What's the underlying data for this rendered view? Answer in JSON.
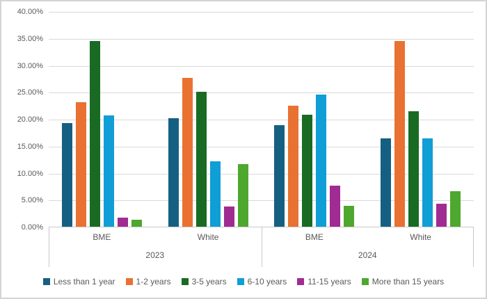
{
  "chart_data": {
    "type": "bar",
    "title": "",
    "xlabel": "",
    "ylabel": "",
    "ylim": [
      0,
      40
    ],
    "ytick_step": 5,
    "ytick_labels": [
      "40.00%",
      "35.00%",
      "30.00%",
      "25.00%",
      "20.00%",
      "15.00%",
      "10.00%",
      "5.00%",
      "0.00%"
    ],
    "grid": true,
    "legend_position": "bottom",
    "outer_groups": [
      "2023",
      "2024"
    ],
    "categories": [
      "BME",
      "White",
      "BME",
      "White"
    ],
    "series": [
      {
        "name": "Less than 1 year",
        "color": "#156082",
        "values": [
          19.2,
          20.1,
          18.9,
          16.4
        ]
      },
      {
        "name": "1-2 years",
        "color": "#E97132",
        "values": [
          23.1,
          27.6,
          22.5,
          34.4
        ]
      },
      {
        "name": "3-5 years",
        "color": "#196B24",
        "values": [
          34.5,
          25.0,
          20.8,
          21.4
        ]
      },
      {
        "name": "6-10 years",
        "color": "#0F9ED5",
        "values": [
          20.6,
          12.1,
          24.5,
          16.4
        ]
      },
      {
        "name": "11-15 years",
        "color": "#A02B93",
        "values": [
          1.7,
          3.7,
          7.6,
          4.2
        ]
      },
      {
        "name": "More than 15 years",
        "color": "#4EA72E",
        "values": [
          1.3,
          11.6,
          3.9,
          6.6
        ]
      }
    ],
    "colors": {
      "axis_text": "#595959",
      "gridline": "#d9d9d9",
      "axis_line": "#c9c9c9",
      "border": "#d6d3d3",
      "background": "#ffffff"
    }
  }
}
